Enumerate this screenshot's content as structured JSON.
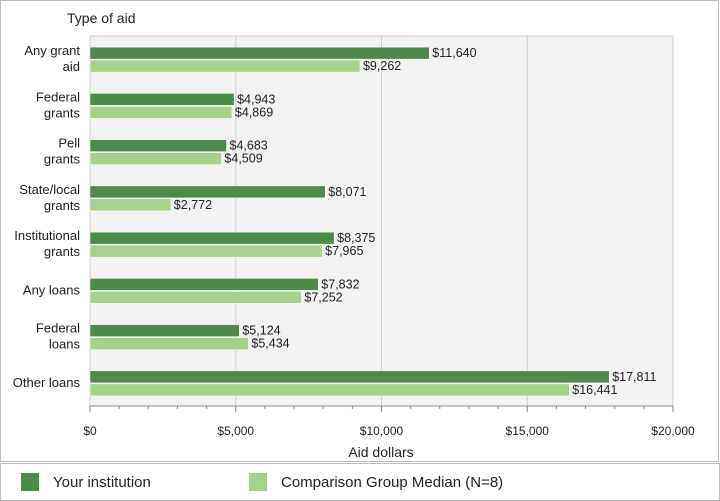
{
  "chart_data": {
    "type": "bar",
    "orientation": "horizontal",
    "title": "Type of aid",
    "xlabel": "Aid dollars",
    "xlim": [
      0,
      20000
    ],
    "xticks": [
      0,
      5000,
      10000,
      15000,
      20000
    ],
    "xtick_labels": [
      "$0",
      "$5,000",
      "$10,000",
      "$15,000",
      "$20,000"
    ],
    "grid": true,
    "legend_position": "bottom",
    "categories": [
      [
        "Any grant",
        "aid"
      ],
      [
        "Federal",
        "grants"
      ],
      [
        "Pell",
        "grants"
      ],
      [
        "State/local",
        "grants"
      ],
      [
        "Institutional",
        "grants"
      ],
      [
        "Any loans"
      ],
      [
        "Federal",
        "loans"
      ],
      [
        "Other loans"
      ]
    ],
    "series": [
      {
        "name": "Your institution",
        "color": "#4e8a4a",
        "values": [
          11640,
          4943,
          4683,
          8071,
          8375,
          7832,
          5124,
          17811
        ],
        "labels": [
          "$11,640",
          "$4,943",
          "$4,683",
          "$8,071",
          "$8,375",
          "$7,832",
          "$5,124",
          "$17,811"
        ]
      },
      {
        "name": "Comparison Group Median (N=8)",
        "color": "#a6d08c",
        "values": [
          9262,
          4869,
          4509,
          2772,
          7965,
          7252,
          5434,
          16441
        ],
        "labels": [
          "$9,262",
          "$4,869",
          "$4,509",
          "$2,772",
          "$7,965",
          "$7,252",
          "$5,434",
          "$16,441"
        ]
      }
    ]
  },
  "colors": {
    "plot_background": "#f2f2f2",
    "grid": "#cfcfcf",
    "axis": "#8c8c8c"
  }
}
